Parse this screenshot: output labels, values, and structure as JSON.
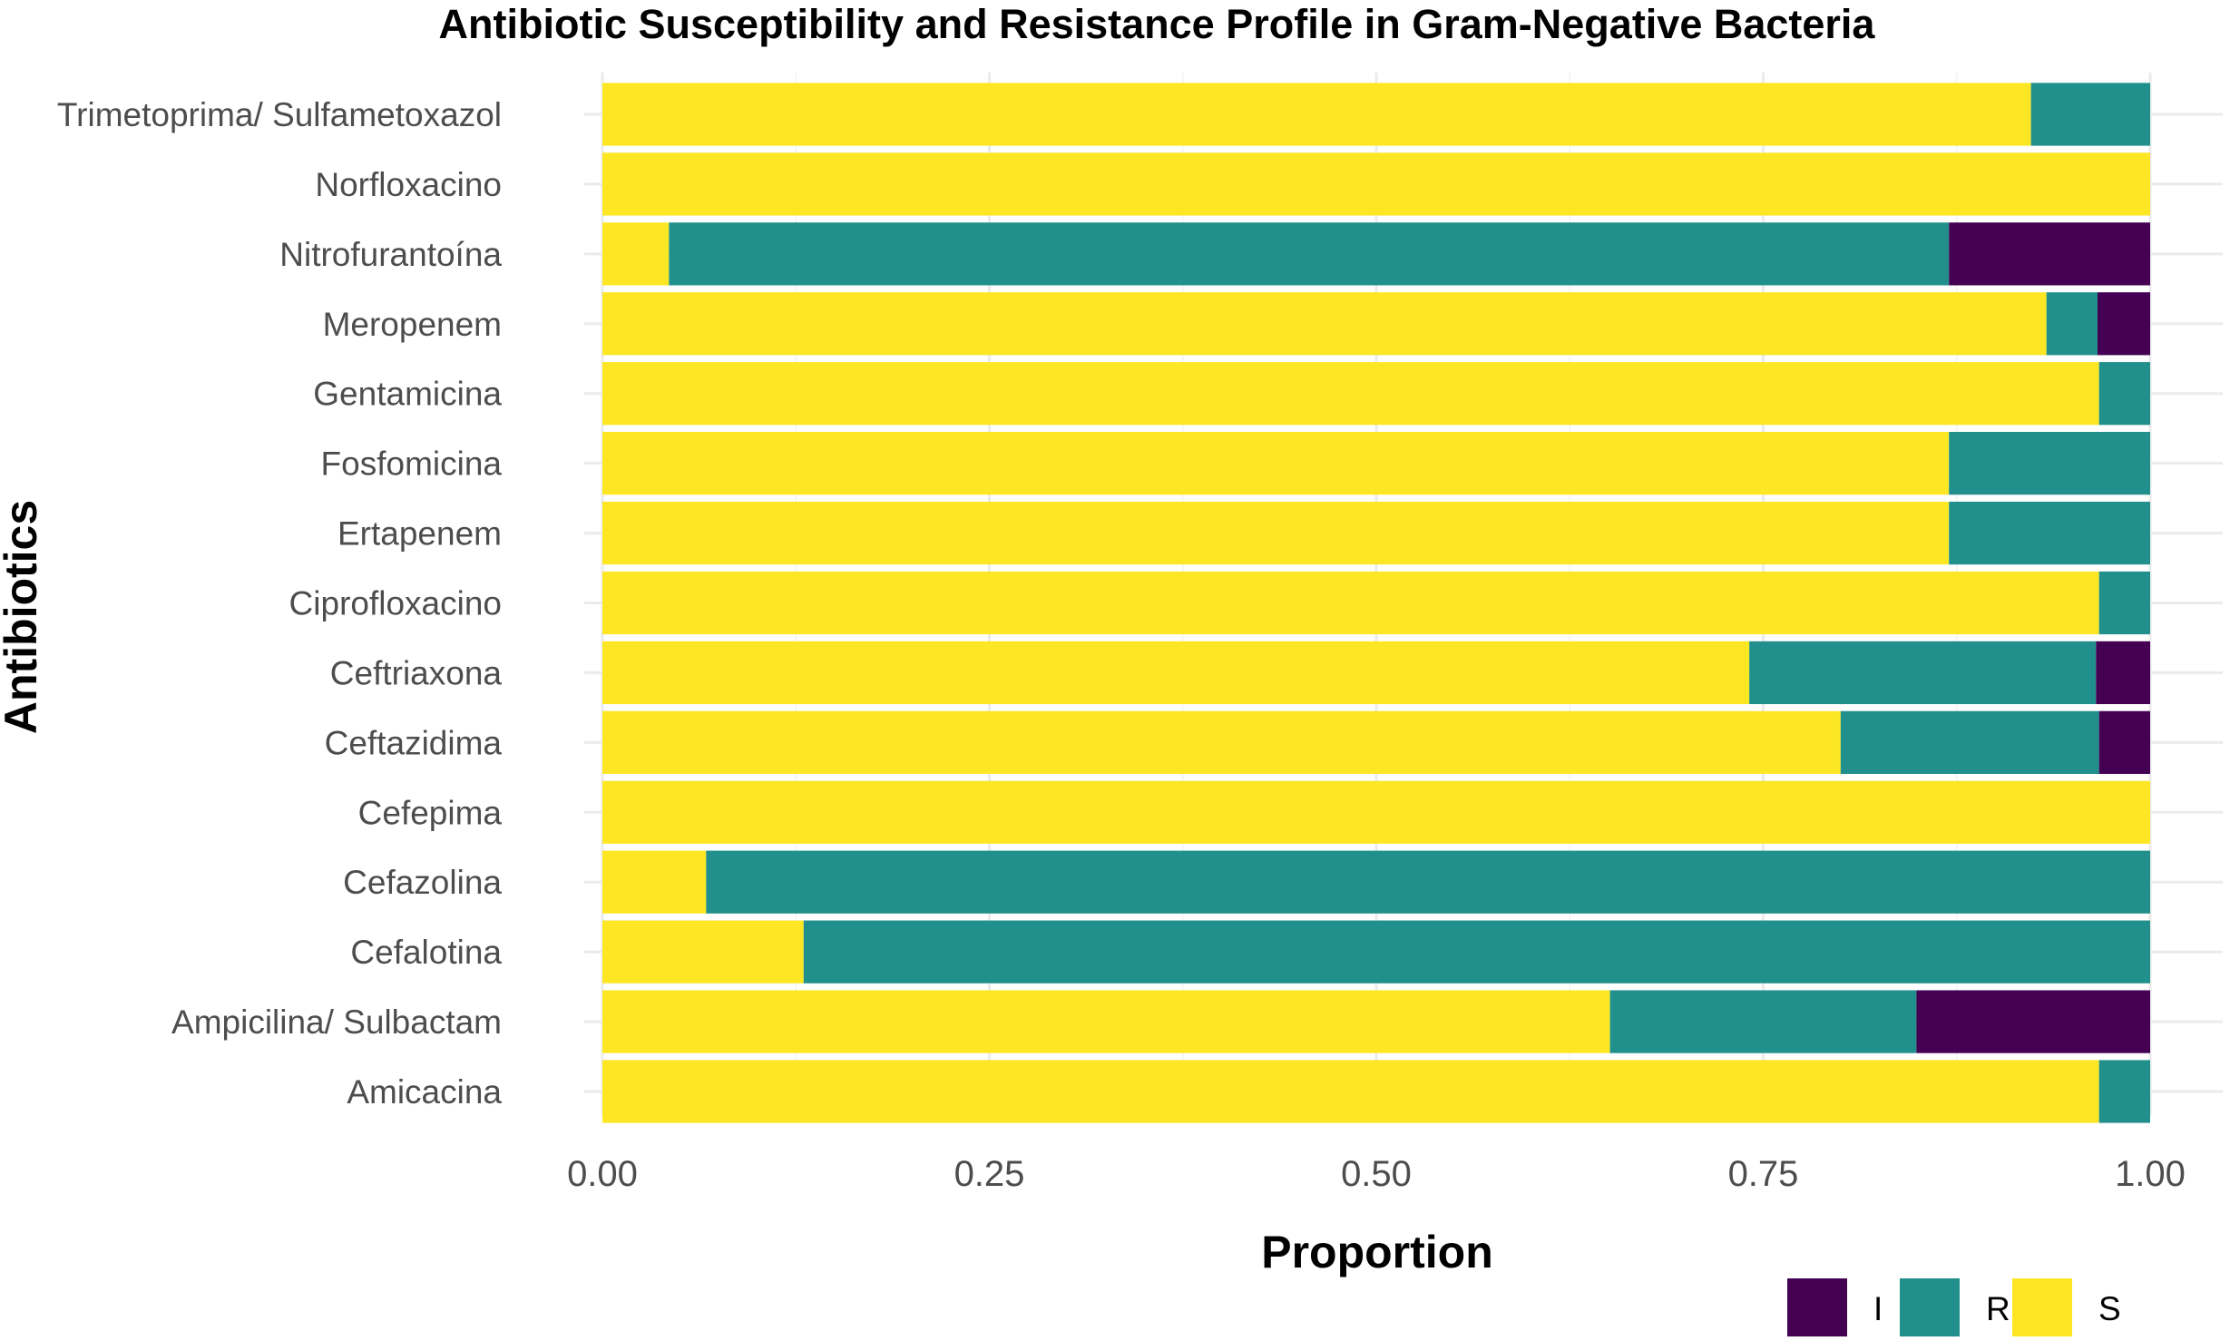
{
  "chart_data": {
    "type": "bar",
    "orientation": "horizontal",
    "stacked": true,
    "title": "Antibiotic Susceptibility and Resistance Profile in Gram-Negative Bacteria",
    "xlabel": "Proportion",
    "ylabel": "Antibiotics",
    "xlim": [
      0,
      1
    ],
    "xticks": [
      0,
      0.25,
      0.5,
      0.75,
      1
    ],
    "xtick_labels": [
      "0.00",
      "0.25",
      "0.50",
      "0.75",
      "1.00"
    ],
    "grid": true,
    "legend_position": "bottom-right",
    "categories": [
      "Trimetoprima/ Sulfametoxazol",
      "Norfloxacino",
      "Nitrofurantoína",
      "Meropenem",
      "Gentamicina",
      "Fosfomicina",
      "Ertapenem",
      "Ciprofloxacino",
      "Ceftriaxona",
      "Ceftazidima",
      "Cefepima",
      "Cefazolina",
      "Cefalotina",
      "Ampicilina/ Sulbactam",
      "Amicacina"
    ],
    "series": [
      {
        "name": "S",
        "color": "#fde725",
        "values": [
          0.923,
          1.0,
          0.043,
          0.933,
          0.967,
          0.87,
          0.87,
          0.967,
          0.741,
          0.8,
          1.0,
          0.067,
          0.13,
          0.651,
          0.967
        ]
      },
      {
        "name": "R",
        "color": "#21908c",
        "values": [
          0.077,
          0.0,
          0.827,
          0.033,
          0.033,
          0.13,
          0.13,
          0.033,
          0.224,
          0.167,
          0.0,
          0.933,
          0.87,
          0.198,
          0.033
        ]
      },
      {
        "name": "I",
        "color": "#440154",
        "values": [
          0.0,
          0.0,
          0.13,
          0.034,
          0.0,
          0.0,
          0.0,
          0.0,
          0.035,
          0.033,
          0.0,
          0.0,
          0.0,
          0.151,
          0.0
        ]
      }
    ],
    "legend_order": [
      "I",
      "R",
      "S"
    ]
  }
}
